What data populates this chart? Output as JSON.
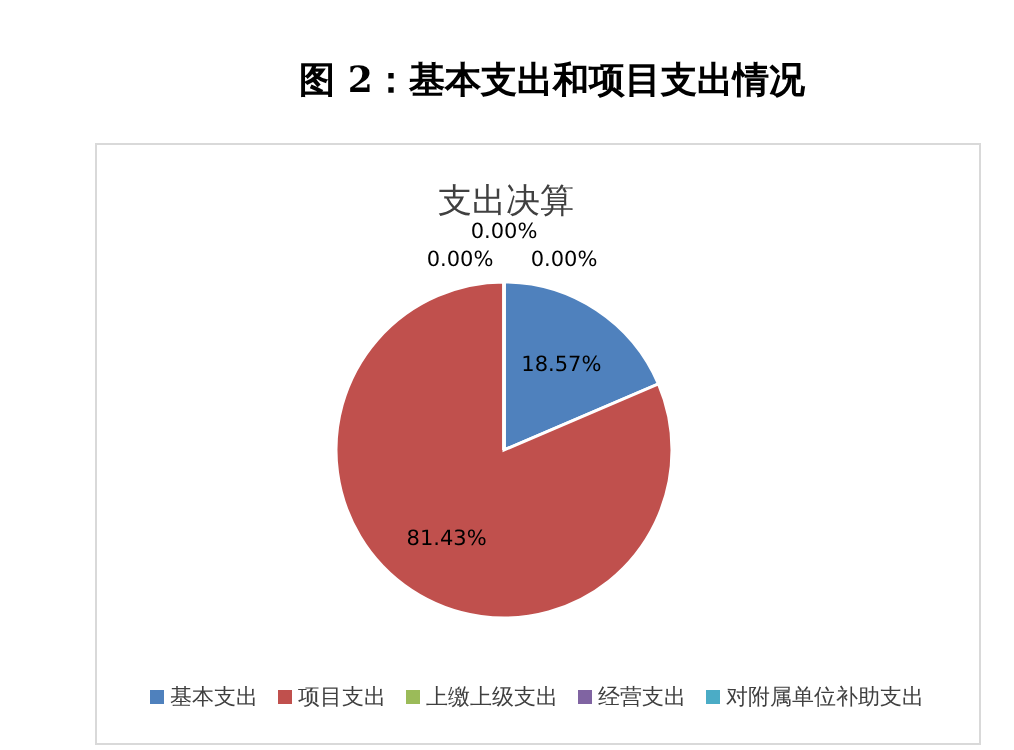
{
  "chart_data": {
    "type": "pie",
    "title": "图 2：基本支出和项目支出情况",
    "subtitle": "支出决算",
    "categories": [
      "基本支出",
      "项目支出",
      "上缴上级支出",
      "经营支出",
      "对附属单位补助支出"
    ],
    "values": [
      18.57,
      81.43,
      0,
      0,
      0
    ],
    "colors": [
      "#4f81bd",
      "#c0504d",
      "#9bbb59",
      "#8064a2",
      "#4bacc6"
    ],
    "value_labels": [
      "18.57%",
      "81.43%",
      "0.00%",
      "0.00%",
      "0.00%"
    ],
    "legend": "bottom"
  }
}
